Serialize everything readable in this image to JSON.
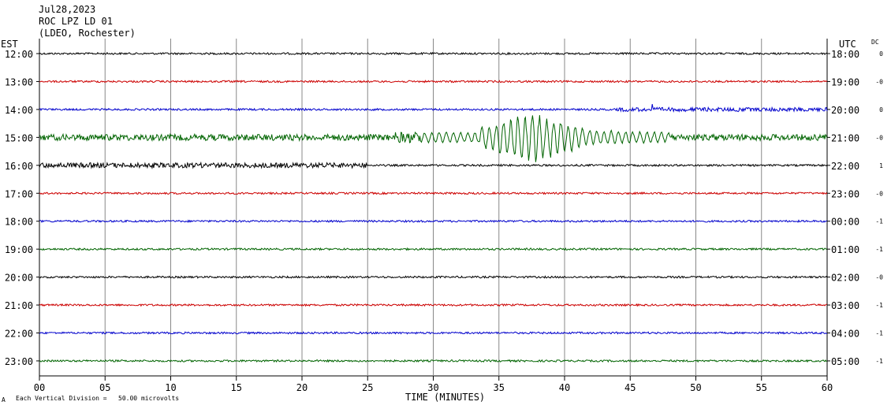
{
  "header": {
    "date": "Jul28,2023",
    "station": "ROC LPZ LD 01",
    "network": "(LDEO, Rochester)"
  },
  "left_tz": "EST",
  "right_tz": "UTC",
  "dc_label": "DC",
  "footer": {
    "corner_mark": "A",
    "scale_note": "Each Vertical Division =   50.00 microvolts"
  },
  "chart_data": {
    "type": "line",
    "title": "",
    "xlabel": "TIME (MINUTES)",
    "ylabel": "",
    "xlim": [
      0,
      60
    ],
    "x_ticks": [
      0,
      5,
      10,
      15,
      20,
      25,
      30,
      35,
      40,
      45,
      50,
      55,
      60
    ],
    "x_tick_labels": [
      "00",
      "05",
      "10",
      "15",
      "20",
      "25",
      "30",
      "35",
      "40",
      "45",
      "50",
      "55",
      "60"
    ],
    "grid": true,
    "colors": [
      "#000000",
      "#cc0000",
      "#0000cc",
      "#006400"
    ],
    "series": [
      {
        "est": "12:00",
        "utc": "18:00",
        "dc": "0",
        "color": "#000000",
        "activity": "quiet"
      },
      {
        "est": "13:00",
        "utc": "19:00",
        "dc": "-0",
        "color": "#cc0000",
        "activity": "quiet"
      },
      {
        "est": "14:00",
        "utc": "20:00",
        "dc": "0",
        "color": "#0000cc",
        "activity": "noisy after minute 45"
      },
      {
        "est": "15:00",
        "utc": "21:00",
        "dc": "-0",
        "color": "#006400",
        "activity": "earthquake surface waves, peak near minutes 34-41"
      },
      {
        "est": "16:00",
        "utc": "22:00",
        "dc": "1",
        "color": "#000000",
        "activity": "moderate at start"
      },
      {
        "est": "17:00",
        "utc": "23:00",
        "dc": "-0",
        "color": "#cc0000",
        "activity": "quiet"
      },
      {
        "est": "18:00",
        "utc": "00:00",
        "dc": "-1",
        "color": "#0000cc",
        "activity": "quiet"
      },
      {
        "est": "19:00",
        "utc": "01:00",
        "dc": "-1",
        "color": "#006400",
        "activity": "quiet"
      },
      {
        "est": "20:00",
        "utc": "02:00",
        "dc": "-0",
        "color": "#000000",
        "activity": "quiet"
      },
      {
        "est": "21:00",
        "utc": "03:00",
        "dc": "-1",
        "color": "#cc0000",
        "activity": "quiet"
      },
      {
        "est": "22:00",
        "utc": "04:00",
        "dc": "-1",
        "color": "#0000cc",
        "activity": "quiet"
      },
      {
        "est": "23:00",
        "utc": "05:00",
        "dc": "-1",
        "color": "#006400",
        "activity": "quiet"
      }
    ],
    "event": {
      "row_est": "15:00",
      "start_min": 33.5,
      "end_min": 41.5,
      "peak_amplitude_divisions": 0.9
    }
  }
}
